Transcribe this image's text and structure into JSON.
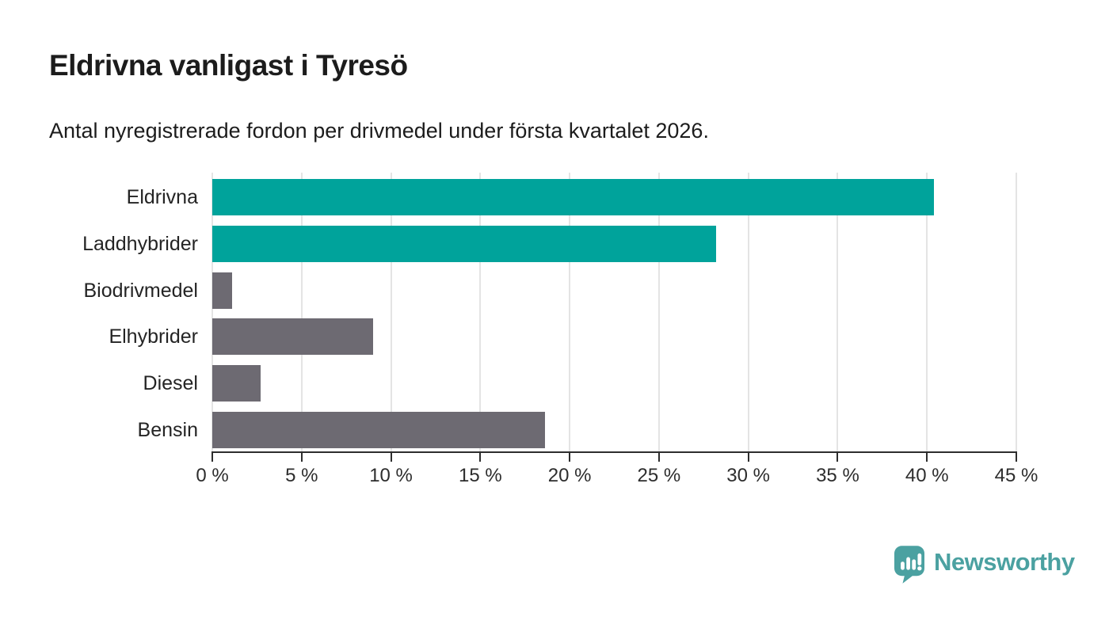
{
  "title": "Eldrivna vanligast i Tyresö",
  "subtitle": "Antal nyregistrerade fordon per drivmedel under första kvartalet 2026.",
  "chart_data": {
    "type": "bar",
    "orientation": "horizontal",
    "title": "Eldrivna vanligast i Tyresö",
    "subtitle": "Antal nyregistrerade fordon per drivmedel under första kvartalet 2026.",
    "categories": [
      "Eldrivna",
      "Laddhybrider",
      "Biodrivmedel",
      "Elhybrider",
      "Diesel",
      "Bensin"
    ],
    "values": [
      40.4,
      28.2,
      1.1,
      9.0,
      2.7,
      18.6
    ],
    "unit": "%",
    "bar_colors": [
      "#00a39b",
      "#00a39b",
      "#6d6a72",
      "#6d6a72",
      "#6d6a72",
      "#6d6a72"
    ],
    "highlight_color": "#00a39b",
    "default_color": "#6d6a72",
    "xlabel": "",
    "ylabel": "",
    "xlim": [
      0,
      45
    ],
    "x_ticks": [
      0,
      5,
      10,
      15,
      20,
      25,
      30,
      35,
      40,
      45
    ],
    "x_tick_labels": [
      "0 %",
      "5 %",
      "10 %",
      "15 %",
      "20 %",
      "25 %",
      "30 %",
      "35 %",
      "40 %",
      "45 %"
    ],
    "grid": "vertical",
    "gridline_color": "#e4e4e4",
    "axis_color": "#2d2d2d",
    "legend": "none"
  },
  "footer": {
    "brand": "Newsworthy",
    "brand_color": "#4ba1a1",
    "logo_icon": "speech-bubble-bar-chart-icon"
  }
}
